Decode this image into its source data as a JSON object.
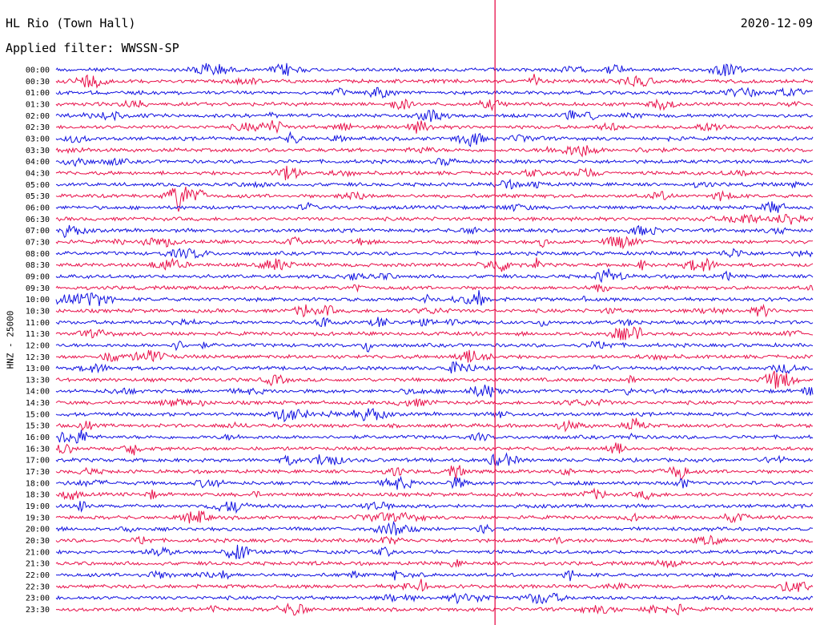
{
  "header": {
    "station": "HL Rio (Town Hall)",
    "date": "2020-12-09",
    "filter": "Applied filter: WWSSN-SP"
  },
  "chart_data": {
    "type": "line",
    "kind": "helicorder",
    "ylabel": "HNZ - 25000",
    "row_labels": [
      "00:00",
      "00:30",
      "01:00",
      "01:30",
      "02:00",
      "02:30",
      "03:00",
      "03:30",
      "04:00",
      "04:30",
      "05:00",
      "05:30",
      "06:00",
      "06:30",
      "07:00",
      "07:30",
      "08:00",
      "08:30",
      "09:00",
      "09:30",
      "10:00",
      "10:30",
      "11:00",
      "11:30",
      "12:00",
      "12:30",
      "13:00",
      "13:30",
      "14:00",
      "14:30",
      "15:00",
      "15:30",
      "16:00",
      "16:30",
      "17:00",
      "17:30",
      "18:00",
      "18:30",
      "19:00",
      "19:30",
      "20:00",
      "20:30",
      "21:00",
      "21:30",
      "22:00",
      "22:30",
      "23:00",
      "23:30"
    ],
    "colors": [
      "#1010e0",
      "#e8104a"
    ],
    "marker_color": "#e8104a",
    "marker_fraction": 0.58
  }
}
